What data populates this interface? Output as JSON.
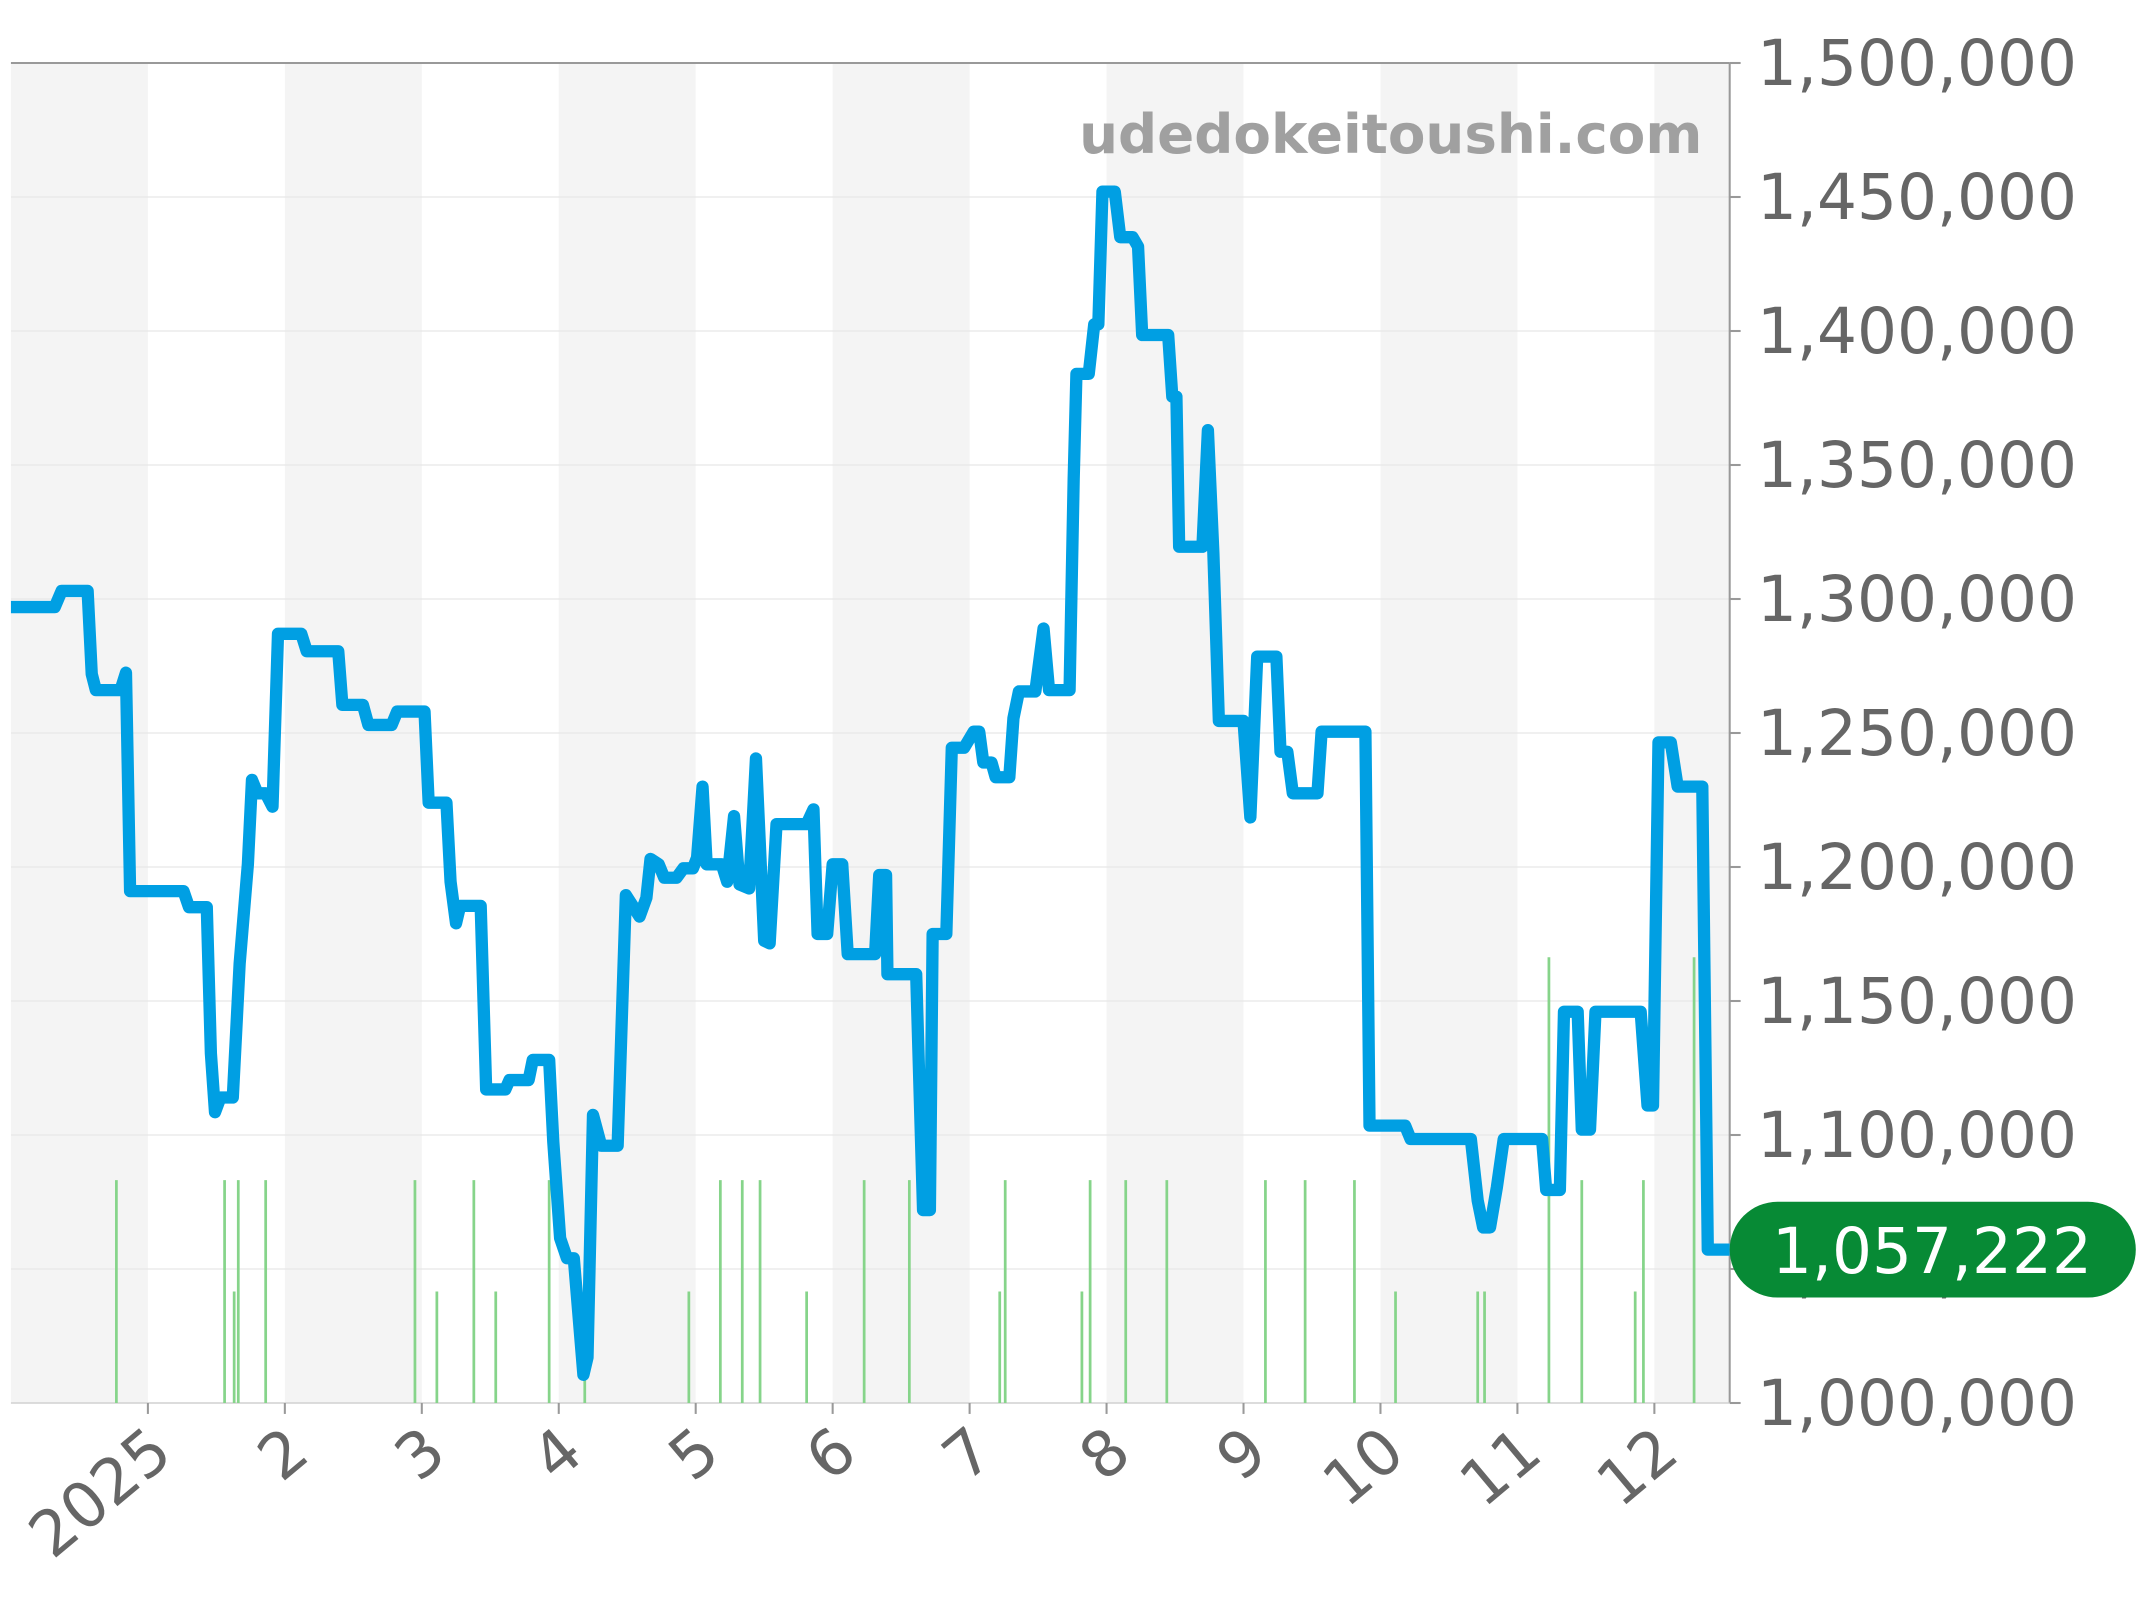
{
  "chart_data": {
    "type": "line",
    "watermark": "udedokeitoushi.com",
    "xlim": [
      0,
      12.55
    ],
    "xticks": [
      {
        "value": 1,
        "label": "2025"
      },
      2,
      3,
      4,
      5,
      6,
      7,
      8,
      9,
      10,
      11,
      12
    ],
    "ylim": [
      1000000,
      1500000
    ],
    "yticks": [
      {
        "value": 1000000,
        "label": "1,000,000"
      },
      {
        "value": 1050000,
        "label": "1,050,000"
      },
      {
        "value": 1100000,
        "label": "1,100,000"
      },
      {
        "value": 1150000,
        "label": "1,150,000"
      },
      {
        "value": 1200000,
        "label": "1,200,000"
      },
      {
        "value": 1250000,
        "label": "1,250,000"
      },
      {
        "value": 1300000,
        "label": "1,300,000"
      },
      {
        "value": 1350000,
        "label": "1,350,000"
      },
      {
        "value": 1400000,
        "label": "1,400,000"
      },
      {
        "value": 1450000,
        "label": "1,450,000"
      },
      {
        "value": 1500000,
        "label": "1,500,000"
      }
    ],
    "hidden_ytick_labels": [
      1
    ],
    "grid": true,
    "series": [
      {
        "color": "#009fe3",
        "x": [
          0.0,
          0.32,
          0.37,
          0.56,
          0.59,
          0.62,
          0.8,
          0.84,
          0.87,
          1.26,
          1.3,
          1.43,
          1.46,
          1.49,
          1.53,
          1.62,
          1.67,
          1.73,
          1.76,
          1.8,
          1.86,
          1.91,
          1.95,
          2.12,
          2.16,
          2.39,
          2.42,
          2.57,
          2.61,
          2.78,
          2.82,
          3.02,
          3.05,
          3.18,
          3.21,
          3.25,
          3.28,
          3.43,
          3.47,
          3.61,
          3.64,
          3.78,
          3.81,
          3.93,
          3.96,
          4.01,
          4.06,
          4.11,
          4.18,
          4.21,
          4.25,
          4.31,
          4.43,
          4.49,
          4.59,
          4.64,
          4.67,
          4.73,
          4.77,
          4.86,
          4.91,
          4.98,
          5.01,
          5.05,
          5.08,
          5.19,
          5.23,
          5.28,
          5.32,
          5.39,
          5.44,
          5.5,
          5.54,
          5.59,
          5.81,
          5.86,
          5.89,
          5.96,
          6.0,
          6.07,
          6.11,
          6.31,
          6.34,
          6.39,
          6.4,
          6.61,
          6.66,
          6.71,
          6.73,
          6.83,
          6.87,
          6.96,
          7.03,
          7.07,
          7.1,
          7.16,
          7.19,
          7.29,
          7.32,
          7.36,
          7.48,
          7.54,
          7.58,
          7.73,
          7.76,
          7.78,
          7.87,
          7.91,
          7.94,
          7.97,
          8.06,
          8.1,
          8.19,
          8.23,
          8.26,
          8.45,
          8.48,
          8.51,
          8.53,
          8.7,
          8.74,
          8.78,
          8.82,
          9.0,
          9.05,
          9.1,
          9.24,
          9.27,
          9.32,
          9.36,
          9.54,
          9.57,
          9.89,
          9.92,
          10.18,
          10.22,
          10.66,
          10.71,
          10.75,
          10.8,
          10.85,
          10.9,
          11.18,
          11.21,
          11.31,
          11.34,
          11.44,
          11.47,
          11.53,
          11.57,
          11.9,
          11.95,
          11.99,
          12.03,
          12.12,
          12.17,
          12.35,
          12.39,
          12.55
        ],
        "values": [
          1297000,
          1297000,
          1303000,
          1303000,
          1272000,
          1266000,
          1266000,
          1272500,
          1191000,
          1191000,
          1185000,
          1185000,
          1130500,
          1108500,
          1114000,
          1114000,
          1164000,
          1201000,
          1232500,
          1227500,
          1227500,
          1222500,
          1287000,
          1287000,
          1280500,
          1280500,
          1260500,
          1260500,
          1253000,
          1253000,
          1258000,
          1258000,
          1224000,
          1224000,
          1194500,
          1179000,
          1185500,
          1185500,
          1117000,
          1117000,
          1120500,
          1120500,
          1128000,
          1128000,
          1097500,
          1061500,
          1054000,
          1054000,
          1010500,
          1017000,
          1107500,
          1096000,
          1096000,
          1189500,
          1181500,
          1188500,
          1203000,
          1201000,
          1196000,
          1196000,
          1199500,
          1199500,
          1203500,
          1230000,
          1201000,
          1201000,
          1194500,
          1219000,
          1193500,
          1192000,
          1240500,
          1172500,
          1171500,
          1216000,
          1216000,
          1221500,
          1175000,
          1175000,
          1201000,
          1201000,
          1167500,
          1167500,
          1197000,
          1197000,
          1160000,
          1160000,
          1072000,
          1072000,
          1175000,
          1175000,
          1244500,
          1244500,
          1250500,
          1250500,
          1239000,
          1239000,
          1233500,
          1233500,
          1255500,
          1265500,
          1265500,
          1289000,
          1266000,
          1266000,
          1345000,
          1384000,
          1384000,
          1402500,
          1402500,
          1452000,
          1452000,
          1435000,
          1435000,
          1431500,
          1398500,
          1398500,
          1375500,
          1375500,
          1319500,
          1319500,
          1363000,
          1317000,
          1254500,
          1254500,
          1218500,
          1278500,
          1278500,
          1243000,
          1243000,
          1227500,
          1227500,
          1250500,
          1250500,
          1103500,
          1103500,
          1098500,
          1098500,
          1075500,
          1065500,
          1065500,
          1080500,
          1098500,
          1098500,
          1079500,
          1079500,
          1146000,
          1146000,
          1102000,
          1102000,
          1146000,
          1146000,
          1111000,
          1111000,
          1246500,
          1246500,
          1230000,
          1230000,
          1057222,
          1057222
        ]
      }
    ],
    "latest": {
      "value": 1057222,
      "label": "1,057,222",
      "color": "#078a35"
    },
    "volume": {
      "color": "#86d48a",
      "x": [
        0.77,
        1.56,
        1.63,
        1.66,
        1.86,
        2.95,
        3.11,
        3.38,
        3.54,
        3.93,
        4.19,
        4.95,
        5.18,
        5.34,
        5.47,
        5.81,
        6.23,
        6.56,
        7.22,
        7.26,
        7.82,
        7.88,
        8.14,
        8.44,
        9.16,
        9.45,
        9.81,
        10.11,
        10.71,
        10.76,
        11.23,
        11.47,
        11.86,
        11.92,
        12.29
      ],
      "values": [
        2,
        2,
        1,
        2,
        2,
        2,
        1,
        2,
        1,
        2,
        1,
        1,
        2,
        2,
        2,
        1,
        2,
        2,
        1,
        2,
        1,
        2,
        2,
        2,
        2,
        2,
        2,
        1,
        1,
        1,
        4,
        2,
        1,
        2,
        4
      ]
    }
  }
}
